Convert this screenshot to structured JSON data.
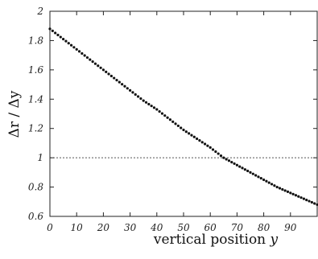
{
  "chart_data": {
    "type": "scatter",
    "title": "",
    "xlabel_text": "vertical position ",
    "xlabel_var": "y",
    "ylabel": "Δr / Δy",
    "xlim": [
      0,
      100
    ],
    "ylim": [
      0.6,
      2.0
    ],
    "x_ticks": [
      0,
      10,
      20,
      30,
      40,
      50,
      60,
      70,
      80,
      90
    ],
    "x_tick_labels": [
      "0",
      "10",
      "20",
      "30",
      "40",
      "50",
      "60",
      "70",
      "80",
      "90"
    ],
    "y_ticks": [
      0.6,
      0.8,
      1.0,
      1.2,
      1.4,
      1.6,
      1.8,
      2.0
    ],
    "y_tick_labels": [
      "0.6",
      "0.8",
      "1",
      "1.2",
      "1.4",
      "1.6",
      "1.8",
      "2"
    ],
    "reference_line": {
      "y": 1.0,
      "style": "dotted"
    },
    "grid": false,
    "series": [
      {
        "x": [
          0,
          5,
          10,
          15,
          20,
          25,
          30,
          35,
          40,
          45,
          50,
          55,
          60,
          65,
          70,
          75,
          80,
          85,
          90,
          95,
          100
        ],
        "y": [
          1.88,
          1.81,
          1.74,
          1.67,
          1.6,
          1.53,
          1.46,
          1.39,
          1.33,
          1.26,
          1.19,
          1.13,
          1.07,
          1.0,
          0.95,
          0.9,
          0.85,
          0.8,
          0.76,
          0.72,
          0.68
        ]
      }
    ]
  }
}
